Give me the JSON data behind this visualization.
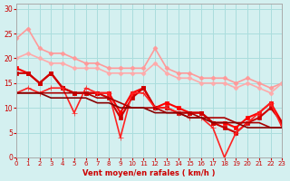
{
  "xlabel": "Vent moyen/en rafales ( km/h )",
  "ylabel": "",
  "background_color": "#d4f0f0",
  "grid_color": "#aadddd",
  "xlim": [
    0,
    23
  ],
  "ylim": [
    0,
    31
  ],
  "yticks": [
    0,
    5,
    10,
    15,
    20,
    25,
    30
  ],
  "xticks": [
    0,
    1,
    2,
    3,
    4,
    5,
    6,
    7,
    8,
    9,
    10,
    11,
    12,
    13,
    14,
    15,
    16,
    17,
    18,
    19,
    20,
    21,
    22,
    23
  ],
  "lines": [
    {
      "x": [
        0,
        1,
        2,
        3,
        4,
        5,
        6,
        7,
        8,
        9,
        10,
        11,
        12,
        13,
        14,
        15,
        16,
        17,
        18,
        19,
        20,
        21,
        22,
        23
      ],
      "y": [
        24,
        26,
        22,
        21,
        21,
        20,
        19,
        19,
        18,
        18,
        18,
        18,
        22,
        18,
        17,
        17,
        16,
        16,
        16,
        15,
        16,
        15,
        14,
        15
      ],
      "color": "#ff9999",
      "lw": 1.2,
      "marker": "D",
      "ms": 2.5
    },
    {
      "x": [
        0,
        1,
        2,
        3,
        4,
        5,
        6,
        7,
        8,
        9,
        10,
        11,
        12,
        13,
        14,
        15,
        16,
        17,
        18,
        19,
        20,
        21,
        22,
        23
      ],
      "y": [
        20,
        21,
        20,
        19,
        19,
        18,
        18,
        18,
        17,
        17,
        17,
        17,
        19,
        17,
        16,
        16,
        15,
        15,
        15,
        14,
        15,
        14,
        13,
        15
      ],
      "color": "#ffaaaa",
      "lw": 1.2,
      "marker": "D",
      "ms": 2.5
    },
    {
      "x": [
        0,
        1,
        2,
        3,
        4,
        5,
        6,
        7,
        8,
        9,
        10,
        11,
        12,
        13,
        14,
        15,
        16,
        17,
        18,
        19,
        20,
        21,
        22,
        23
      ],
      "y": [
        18,
        17,
        15,
        17,
        14,
        13,
        13,
        13,
        13,
        9,
        13,
        14,
        10,
        11,
        10,
        9,
        9,
        7,
        7,
        6,
        8,
        9,
        11,
        7
      ],
      "color": "#ff0000",
      "lw": 1.5,
      "marker": "s",
      "ms": 3.0
    },
    {
      "x": [
        0,
        1,
        2,
        3,
        4,
        5,
        6,
        7,
        8,
        9,
        10,
        11,
        12,
        13,
        14,
        15,
        16,
        17,
        18,
        19,
        20,
        21,
        22,
        23
      ],
      "y": [
        17,
        17,
        15,
        17,
        14,
        13,
        13,
        13,
        12,
        8,
        12,
        14,
        10,
        10,
        9,
        9,
        9,
        7,
        6,
        5,
        7,
        8,
        10,
        7
      ],
      "color": "#cc0000",
      "lw": 1.5,
      "marker": "s",
      "ms": 3.0
    },
    {
      "x": [
        0,
        1,
        2,
        3,
        4,
        5,
        6,
        7,
        8,
        9,
        10,
        11,
        12,
        13,
        14,
        15,
        16,
        17,
        18,
        19,
        20,
        21,
        22,
        23
      ],
      "y": [
        13,
        14,
        13,
        14,
        14,
        9,
        14,
        13,
        13,
        4,
        13,
        13,
        10,
        10,
        9,
        8,
        8,
        6,
        0,
        5,
        7,
        9,
        11,
        6
      ],
      "color": "#ff2222",
      "lw": 1.2,
      "marker": "+",
      "ms": 4
    },
    {
      "x": [
        0,
        1,
        2,
        3,
        4,
        5,
        6,
        7,
        8,
        9,
        10,
        11,
        12,
        13,
        14,
        15,
        16,
        17,
        18,
        19,
        20,
        21,
        22,
        23
      ],
      "y": [
        13,
        13,
        13,
        13,
        13,
        13,
        13,
        12,
        12,
        11,
        10,
        10,
        10,
        9,
        9,
        9,
        8,
        8,
        8,
        7,
        7,
        7,
        6,
        6
      ],
      "color": "#aa0000",
      "lw": 1.2,
      "marker": null,
      "ms": 0
    },
    {
      "x": [
        0,
        1,
        2,
        3,
        4,
        5,
        6,
        7,
        8,
        9,
        10,
        11,
        12,
        13,
        14,
        15,
        16,
        17,
        18,
        19,
        20,
        21,
        22,
        23
      ],
      "y": [
        13,
        13,
        13,
        12,
        12,
        12,
        12,
        11,
        11,
        10,
        10,
        10,
        9,
        9,
        9,
        8,
        8,
        7,
        7,
        7,
        6,
        6,
        6,
        6
      ],
      "color": "#880000",
      "lw": 1.2,
      "marker": null,
      "ms": 0
    }
  ]
}
